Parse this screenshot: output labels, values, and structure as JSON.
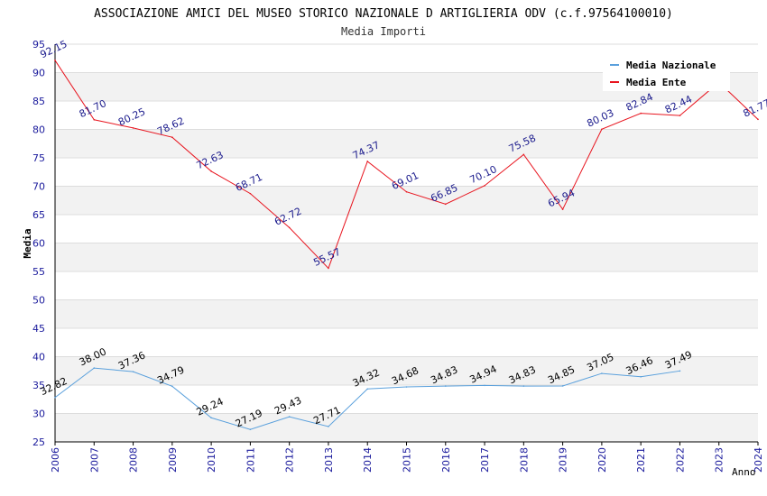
{
  "chart_data": {
    "type": "line",
    "title": "ASSOCIAZIONE AMICI DEL MUSEO STORICO NAZIONALE D ARTIGLIERIA ODV (c.f.97564100010)",
    "subtitle": "Media Importi",
    "xlabel": "Anno",
    "ylabel": "Media",
    "ylim": [
      25,
      95
    ],
    "yticks": [
      "25",
      "30",
      "35",
      "40",
      "45",
      "50",
      "55",
      "60",
      "65",
      "70",
      "75",
      "80",
      "85",
      "90",
      "95"
    ],
    "x": [
      "2006",
      "2007",
      "2008",
      "2009",
      "2010",
      "2011",
      "2012",
      "2013",
      "2014",
      "2015",
      "2016",
      "2017",
      "2018",
      "2019",
      "2020",
      "2021",
      "2022",
      "2023",
      "2024"
    ],
    "grid": "horizontal bands",
    "legend_position": "top-right",
    "series": [
      {
        "name": "Media Nazionale",
        "color": "#5aa0dc",
        "label_color": "#000000",
        "values": [
          32.82,
          38.0,
          37.36,
          34.79,
          29.24,
          27.19,
          29.43,
          27.71,
          34.32,
          34.68,
          34.83,
          34.94,
          34.83,
          34.85,
          37.05,
          36.46,
          37.49,
          null,
          null
        ],
        "labels": [
          "32.82",
          "38.00",
          "37.36",
          "34.79",
          "29.24",
          "27.19",
          "29.43",
          "27.71",
          "34.32",
          "34.68",
          "34.83",
          "34.94",
          "34.83",
          "34.85",
          "37.05",
          "36.46",
          "37.49",
          "",
          ""
        ]
      },
      {
        "name": "Media Ente",
        "color": "#e8141e",
        "label_color": "#1a1a8c",
        "values": [
          92.15,
          81.7,
          80.25,
          78.62,
          72.63,
          68.71,
          62.72,
          55.57,
          74.37,
          69.01,
          66.85,
          70.1,
          75.58,
          65.94,
          80.03,
          82.84,
          82.44,
          88.3,
          81.77
        ],
        "labels": [
          "92.15",
          "81.70",
          "80.25",
          "78.62",
          "72.63",
          "68.71",
          "62.72",
          "55.57",
          "74.37",
          "69.01",
          "66.85",
          "70.10",
          "75.58",
          "65.94",
          "80.03",
          "82.84",
          "82.44",
          "",
          "81.77"
        ]
      }
    ]
  },
  "colors": {
    "axis_text": "#1a1a9c",
    "band": "#f2f2f2",
    "grid": "#dddddd"
  }
}
